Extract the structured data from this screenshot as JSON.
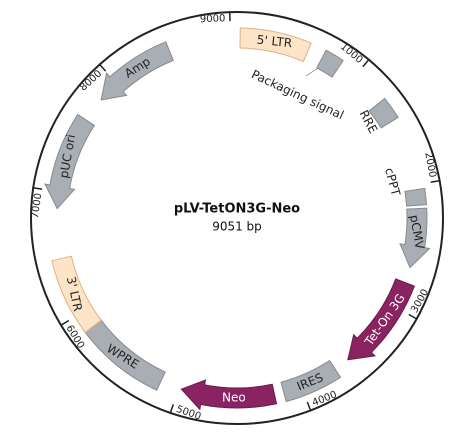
{
  "map": {
    "title": "pLV-TetON3G-Neo",
    "size": {
      "value": 9051,
      "label": "9051 bp"
    },
    "ticks": [
      1000,
      2000,
      3000,
      4000,
      5000,
      6000,
      7000,
      8000,
      9000
    ],
    "features": [
      "5' LTR",
      "Packaging signal",
      "RRE",
      "cPPT",
      "pCMV",
      "Tet-On 3G",
      "IRES",
      "Neo",
      "WPRE",
      "3' LTR",
      "pUC ori",
      "Amp"
    ]
  }
}
